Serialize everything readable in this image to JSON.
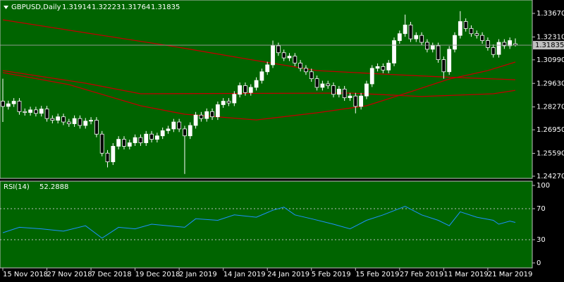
{
  "chart_data": [
    {
      "type": "candlestick",
      "title": "GBPUSD,Daily",
      "categories": [
        "15 Nov 2018",
        null,
        null,
        null,
        null,
        null,
        null,
        null,
        "27 Nov 2018",
        null,
        null,
        null,
        null,
        null,
        null,
        null,
        "7 Dec 2018",
        null,
        null,
        null,
        null,
        null,
        null,
        null,
        "19 Dec 2018",
        null,
        null,
        null,
        null,
        null,
        null,
        null,
        "2 Jan 2019",
        null,
        null,
        null,
        null,
        null,
        null,
        null,
        "14 Jan 2019",
        null,
        null,
        null,
        null,
        null,
        null,
        null,
        "24 Jan 2019",
        null,
        null,
        null,
        null,
        null,
        null,
        null,
        "5 Feb 2019",
        null,
        null,
        null,
        null,
        null,
        null,
        null,
        "15 Feb 2019",
        null,
        null,
        null,
        null,
        null,
        null,
        null,
        "27 Feb 2019",
        null,
        null,
        null,
        null,
        null,
        null,
        null,
        "11 Mar 2019",
        null,
        null,
        null,
        null,
        null,
        null,
        null,
        "21 Mar 2019",
        null,
        null,
        null,
        null,
        null
      ],
      "open": [
        1.286,
        1.283,
        1.2845,
        1.286,
        1.28,
        1.2795,
        1.281,
        1.279,
        1.2815,
        1.276,
        1.275,
        1.277,
        1.274,
        1.273,
        1.276,
        1.272,
        1.2745,
        1.275,
        1.267,
        1.256,
        1.251,
        1.26,
        1.264,
        1.26,
        1.262,
        1.265,
        1.262,
        1.267,
        1.264,
        1.266,
        1.269,
        1.27,
        1.274,
        1.27,
        1.266,
        1.272,
        1.278,
        1.276,
        1.28,
        1.277,
        1.284,
        1.286,
        1.285,
        1.29,
        1.295,
        1.291,
        1.294,
        1.298,
        1.303,
        1.307,
        1.318,
        1.314,
        1.311,
        1.312,
        1.308,
        1.305,
        1.303,
        1.299,
        1.294,
        1.296,
        1.295,
        1.29,
        1.293,
        1.288,
        1.289,
        1.283,
        1.289,
        1.296,
        1.305,
        1.306,
        1.304,
        1.308,
        1.321,
        1.325,
        1.33,
        1.322,
        1.324,
        1.32,
        1.316,
        1.318,
        1.31,
        1.303,
        1.316,
        1.324,
        1.332,
        1.328,
        1.325,
        1.324,
        1.321,
        1.317,
        1.313,
        1.32,
        1.318,
        1.31914
      ],
      "high": [
        1.299,
        1.2863,
        1.2878,
        1.2878,
        1.2818,
        1.2828,
        1.2828,
        1.2833,
        1.2833,
        1.2778,
        1.2788,
        1.2788,
        1.2758,
        1.2778,
        1.2778,
        1.2763,
        1.2768,
        1.2768,
        1.2688,
        1.2578,
        1.2618,
        1.2658,
        1.2658,
        1.2638,
        1.2668,
        1.2668,
        1.2688,
        1.2688,
        1.2678,
        1.2708,
        1.2718,
        1.2758,
        1.2758,
        1.2718,
        1.2738,
        1.2798,
        1.2798,
        1.2818,
        1.2818,
        1.2858,
        1.2878,
        1.2878,
        1.2918,
        1.2968,
        1.2968,
        1.2958,
        1.2998,
        1.3048,
        1.3088,
        1.321,
        1.3198,
        1.3158,
        1.3138,
        1.3138,
        1.3098,
        1.3068,
        1.3048,
        1.3008,
        1.2978,
        1.2978,
        1.2968,
        1.2948,
        1.2948,
        1.2908,
        1.2908,
        1.2908,
        1.2978,
        1.3068,
        1.3078,
        1.3078,
        1.3098,
        1.3228,
        1.3268,
        1.336,
        1.3318,
        1.3258,
        1.3258,
        1.3218,
        1.3198,
        1.3198,
        1.3118,
        1.3178,
        1.3258,
        1.338,
        1.3338,
        1.3298,
        1.3268,
        1.3258,
        1.3228,
        1.3188,
        1.3218,
        1.3218,
        1.3228,
        1.32223
      ],
      "low": [
        1.274,
        1.2812,
        1.2827,
        1.2782,
        1.2777,
        1.2777,
        1.2772,
        1.2772,
        1.2742,
        1.2732,
        1.2732,
        1.2722,
        1.2712,
        1.2712,
        1.2702,
        1.2702,
        1.2727,
        1.2652,
        1.2542,
        1.2478,
        1.2492,
        1.2582,
        1.2582,
        1.2582,
        1.2602,
        1.2602,
        1.2602,
        1.2622,
        1.2622,
        1.2642,
        1.2672,
        1.2682,
        1.2682,
        1.244,
        1.2642,
        1.2702,
        1.2742,
        1.2742,
        1.2752,
        1.2752,
        1.2822,
        1.2832,
        1.2832,
        1.2882,
        1.2892,
        1.2892,
        1.2922,
        1.2962,
        1.3012,
        1.3052,
        1.3122,
        1.3092,
        1.3092,
        1.3062,
        1.3032,
        1.3012,
        1.2972,
        1.2922,
        1.2922,
        1.2932,
        1.2882,
        1.2882,
        1.2862,
        1.2862,
        1.279,
        1.2812,
        1.2872,
        1.2942,
        1.3032,
        1.3022,
        1.3022,
        1.3062,
        1.3192,
        1.3232,
        1.3202,
        1.3202,
        1.3182,
        1.3142,
        1.3142,
        1.3082,
        1.299,
        1.3012,
        1.3142,
        1.3222,
        1.3262,
        1.3232,
        1.3222,
        1.3192,
        1.3152,
        1.3112,
        1.3112,
        1.3162,
        1.3162,
        1.31764
      ],
      "close": [
        1.283,
        1.2845,
        1.286,
        1.28,
        1.2795,
        1.281,
        1.279,
        1.2815,
        1.276,
        1.275,
        1.277,
        1.274,
        1.273,
        1.276,
        1.272,
        1.2745,
        1.275,
        1.267,
        1.256,
        1.251,
        1.26,
        1.264,
        1.26,
        1.262,
        1.265,
        1.262,
        1.267,
        1.264,
        1.266,
        1.269,
        1.27,
        1.274,
        1.27,
        1.266,
        1.272,
        1.278,
        1.276,
        1.28,
        1.277,
        1.284,
        1.286,
        1.285,
        1.29,
        1.295,
        1.291,
        1.294,
        1.298,
        1.303,
        1.307,
        1.318,
        1.314,
        1.311,
        1.312,
        1.308,
        1.305,
        1.303,
        1.299,
        1.294,
        1.296,
        1.295,
        1.29,
        1.293,
        1.288,
        1.289,
        1.283,
        1.289,
        1.296,
        1.305,
        1.306,
        1.304,
        1.308,
        1.321,
        1.325,
        1.33,
        1.322,
        1.324,
        1.32,
        1.316,
        1.318,
        1.31,
        1.303,
        1.316,
        1.324,
        1.332,
        1.328,
        1.325,
        1.324,
        1.321,
        1.317,
        1.313,
        1.32,
        1.318,
        1.321,
        1.31835
      ],
      "color_up": "#ffffff",
      "color_down": "#000000",
      "wick_color": "#ffffff",
      "lines": [
        {
          "x": [
            0,
            15,
            31,
            45,
            57,
            70,
            80,
            93
          ],
          "values": [
            1.333,
            1.3255,
            1.3176,
            1.31,
            1.3037,
            1.3015,
            1.3,
            1.2984
          ],
          "color": "#c00000"
        },
        {
          "x": [
            0,
            15,
            25,
            63,
            76,
            89,
            93
          ],
          "values": [
            1.3037,
            1.2964,
            1.2903,
            1.2907,
            1.2887,
            1.2903,
            1.2923
          ],
          "color": "#c00000"
        },
        {
          "x": [
            0,
            12,
            25,
            33,
            46,
            57,
            66,
            74,
            81,
            88,
            93
          ],
          "values": [
            1.3025,
            1.2956,
            1.2834,
            1.2785,
            1.2752,
            1.2793,
            1.2834,
            1.2915,
            1.2988,
            1.3037,
            1.3086
          ],
          "color": "#c00000"
        }
      ],
      "ylim": [
        1.24146,
        1.34443
      ],
      "yticks": [
        {
          "value": 1.3367,
          "label": "1.33670"
        },
        {
          "value": 1.3231,
          "label": "1.32310"
        },
        {
          "value": 1.3099,
          "label": "1.30990"
        },
        {
          "value": 1.2963,
          "label": "1.29630"
        },
        {
          "value": 1.2827,
          "label": "1.28270"
        },
        {
          "value": 1.2695,
          "label": "1.26950"
        },
        {
          "value": 1.2559,
          "label": "1.25590"
        },
        {
          "value": 1.2427,
          "label": "1.24270"
        }
      ]
    },
    {
      "type": "line",
      "title": "RSI(14)",
      "x": [
        0,
        3,
        7,
        11,
        15,
        18,
        21,
        24,
        27,
        30,
        33,
        35,
        39,
        42,
        46,
        49,
        51,
        53,
        56,
        60,
        63,
        66,
        69,
        73,
        76,
        79,
        81,
        83,
        86,
        89,
        90,
        92,
        93
      ],
      "values": [
        39,
        46,
        44,
        41,
        48,
        32,
        46,
        44,
        50,
        48,
        46,
        57,
        55,
        62,
        59,
        68,
        72,
        62,
        57,
        50,
        44,
        55,
        62,
        73,
        62,
        55,
        48,
        66,
        59,
        55,
        50,
        54,
        52.2888
      ],
      "color": "#1e90ff",
      "ylim": [
        -6.4,
        105.5
      ],
      "yticks": [
        100,
        70,
        30,
        0
      ],
      "levels": [
        70,
        30
      ]
    }
  ]
}
